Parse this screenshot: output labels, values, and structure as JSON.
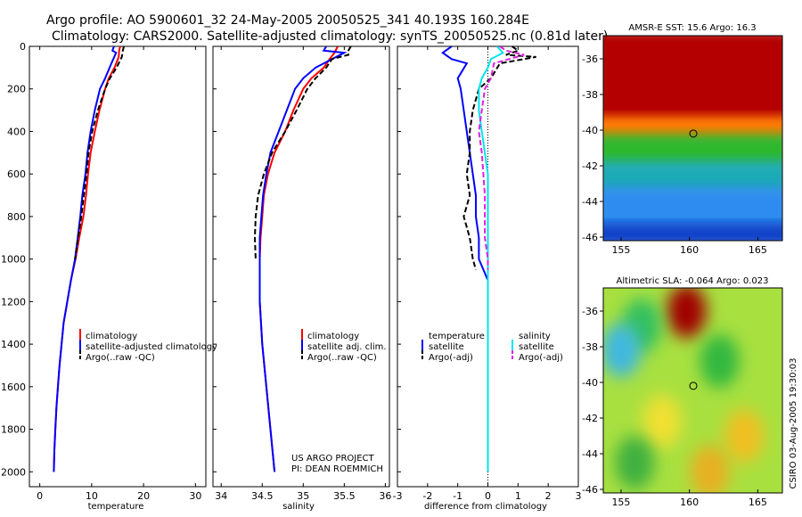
{
  "title_line1": "Argo profile: AO 5900601_32 24-May-2005 20050525_341 40.193S 160.284E",
  "title_line2": "Climatology: CARS2000. Satellite-adjusted climatology: synTS_20050525.nc (0.81d later)",
  "footer_project": "US ARGO PROJECT",
  "footer_pi": "PI: DEAN ROEMMICH",
  "side_credit": "CSIRO 03-Aug-2005 19:30:03",
  "colors": {
    "red": "#ff0000",
    "blue": "#0000ff",
    "black": "#000000",
    "cyan": "#00e5ee",
    "magenta": "#e020e0"
  },
  "chart_data": [
    {
      "type": "line",
      "title": "Temperature profile",
      "xlabel": "temperature",
      "ylabel": "",
      "xlim": [
        -2,
        32
      ],
      "ylim": [
        2070,
        0
      ],
      "xticks": [
        0,
        10,
        20,
        30
      ],
      "yticks": [
        0,
        200,
        400,
        600,
        800,
        1000,
        1200,
        1400,
        1600,
        1800,
        2000
      ],
      "legend": [
        "climatology",
        "satellite-adjusted climatology",
        "Argo(..raw -QC)"
      ],
      "series": [
        {
          "name": "climatology",
          "color": "red",
          "dash": false,
          "points": [
            [
              15.5,
              0
            ],
            [
              15.3,
              20
            ],
            [
              15.2,
              50
            ],
            [
              14.4,
              100
            ],
            [
              13.3,
              150
            ],
            [
              12.6,
              200
            ],
            [
              11.5,
              300
            ],
            [
              10.6,
              400
            ],
            [
              9.8,
              500
            ],
            [
              9.3,
              600
            ],
            [
              8.9,
              700
            ],
            [
              8.4,
              800
            ],
            [
              7.6,
              900
            ],
            [
              6.9,
              1000
            ],
            [
              6.0,
              1100
            ],
            [
              5.3,
              1200
            ],
            [
              4.6,
              1300
            ],
            [
              4.2,
              1400
            ],
            [
              3.8,
              1500
            ],
            [
              3.5,
              1600
            ],
            [
              3.2,
              1700
            ],
            [
              3.0,
              1800
            ],
            [
              2.8,
              1900
            ],
            [
              2.7,
              2000
            ]
          ]
        },
        {
          "name": "satellite-adjusted climatology",
          "color": "blue",
          "dash": false,
          "points": [
            [
              14.3,
              0
            ],
            [
              14.0,
              20
            ],
            [
              14.7,
              30
            ],
            [
              13.8,
              80
            ],
            [
              12.6,
              150
            ],
            [
              11.6,
              200
            ],
            [
              10.6,
              300
            ],
            [
              9.8,
              400
            ],
            [
              9.2,
              500
            ],
            [
              8.8,
              600
            ],
            [
              8.2,
              700
            ],
            [
              7.8,
              800
            ],
            [
              7.3,
              900
            ],
            [
              6.8,
              1000
            ],
            [
              6.0,
              1100
            ],
            [
              5.3,
              1200
            ],
            [
              4.6,
              1300
            ],
            [
              4.2,
              1400
            ],
            [
              3.8,
              1500
            ],
            [
              3.5,
              1600
            ],
            [
              3.2,
              1700
            ],
            [
              3.0,
              1800
            ],
            [
              2.8,
              1900
            ],
            [
              2.7,
              2000
            ]
          ]
        },
        {
          "name": "Argo(..raw -QC)",
          "color": "black",
          "dash": true,
          "points": [
            [
              16.2,
              0
            ],
            [
              16.0,
              20
            ],
            [
              15.8,
              50
            ],
            [
              14.8,
              100
            ],
            [
              13.5,
              150
            ],
            [
              12.6,
              200
            ],
            [
              11.2,
              300
            ],
            [
              10.1,
              400
            ],
            [
              9.4,
              500
            ],
            [
              9.0,
              600
            ],
            [
              8.5,
              700
            ],
            [
              8.0,
              800
            ],
            [
              7.4,
              900
            ],
            [
              6.8,
              1000
            ]
          ]
        }
      ]
    },
    {
      "type": "line",
      "title": "Salinity profile",
      "xlabel": "salinity",
      "ylabel": "",
      "xlim": [
        33.9,
        36.05
      ],
      "ylim": [
        2070,
        0
      ],
      "xticks": [
        34,
        34.5,
        35,
        35.5,
        36
      ],
      "legend": [
        "climatology",
        "satellite adj. clim.",
        "Argo(..raw -QC)"
      ],
      "series": [
        {
          "name": "climatology",
          "color": "red",
          "dash": false,
          "points": [
            [
              35.42,
              0
            ],
            [
              35.38,
              30
            ],
            [
              35.32,
              60
            ],
            [
              35.25,
              100
            ],
            [
              35.1,
              150
            ],
            [
              35.0,
              200
            ],
            [
              34.88,
              300
            ],
            [
              34.78,
              400
            ],
            [
              34.65,
              500
            ],
            [
              34.57,
              600
            ],
            [
              34.52,
              700
            ],
            [
              34.5,
              800
            ],
            [
              34.48,
              900
            ],
            [
              34.47,
              1000
            ],
            [
              34.47,
              1200
            ],
            [
              34.5,
              1400
            ],
            [
              34.55,
              1600
            ],
            [
              34.6,
              1800
            ],
            [
              34.65,
              2000
            ]
          ]
        },
        {
          "name": "satellite adj. clim.",
          "color": "blue",
          "dash": false,
          "points": [
            [
              35.28,
              0
            ],
            [
              35.25,
              20
            ],
            [
              35.5,
              30
            ],
            [
              35.15,
              100
            ],
            [
              35.0,
              150
            ],
            [
              34.9,
              200
            ],
            [
              34.8,
              300
            ],
            [
              34.7,
              400
            ],
            [
              34.6,
              500
            ],
            [
              34.55,
              600
            ],
            [
              34.51,
              700
            ],
            [
              34.49,
              800
            ],
            [
              34.47,
              900
            ],
            [
              34.47,
              1000
            ],
            [
              34.47,
              1200
            ],
            [
              34.5,
              1400
            ],
            [
              34.55,
              1600
            ],
            [
              34.6,
              1800
            ],
            [
              34.65,
              2000
            ]
          ]
        },
        {
          "name": "Argo(..raw -QC)",
          "color": "black",
          "dash": true,
          "points": [
            [
              35.58,
              0
            ],
            [
              35.55,
              20
            ],
            [
              35.55,
              40
            ],
            [
              35.35,
              60
            ],
            [
              35.28,
              100
            ],
            [
              35.15,
              150
            ],
            [
              35.05,
              200
            ],
            [
              34.92,
              300
            ],
            [
              34.78,
              400
            ],
            [
              34.62,
              500
            ],
            [
              34.52,
              600
            ],
            [
              34.45,
              700
            ],
            [
              34.42,
              800
            ],
            [
              34.41,
              900
            ],
            [
              34.42,
              1000
            ]
          ]
        }
      ]
    },
    {
      "type": "line",
      "title": "Difference from climatology",
      "xlabel": "difference from climatology",
      "ylabel": "",
      "xlim": [
        -3,
        3
      ],
      "ylim": [
        2070,
        0
      ],
      "xticks": [
        -3,
        -2,
        -1,
        0,
        1,
        2,
        3
      ],
      "legend_temperature_header": "temperature",
      "legend_salinity_header": "salinity",
      "legend": [
        "satellite",
        "Argo(-adj)",
        "satellite",
        "Argo(-adj)"
      ],
      "series": [
        {
          "name": "temperature satellite",
          "color": "blue",
          "dash": false,
          "points": [
            [
              -1.2,
              0
            ],
            [
              -1.5,
              30
            ],
            [
              -1.2,
              60
            ],
            [
              -0.7,
              80
            ],
            [
              -1.0,
              150
            ],
            [
              -0.9,
              200
            ],
            [
              -0.8,
              300
            ],
            [
              -0.7,
              400
            ],
            [
              -0.6,
              500
            ],
            [
              -0.5,
              600
            ],
            [
              -0.4,
              700
            ],
            [
              -0.4,
              800
            ],
            [
              -0.3,
              900
            ],
            [
              -0.3,
              1000
            ],
            [
              0.0,
              1100
            ],
            [
              0.0,
              1200
            ],
            [
              0,
              1400
            ],
            [
              0,
              2000
            ]
          ]
        },
        {
          "name": "temperature Argo(-adj)",
          "color": "black",
          "dash": true,
          "points": [
            [
              0.8,
              0
            ],
            [
              1.0,
              20
            ],
            [
              0.6,
              40
            ],
            [
              1.6,
              50
            ],
            [
              0.4,
              80
            ],
            [
              0.1,
              150
            ],
            [
              -0.3,
              200
            ],
            [
              -0.5,
              300
            ],
            [
              -0.6,
              400
            ],
            [
              -0.6,
              500
            ],
            [
              -0.7,
              600
            ],
            [
              -0.6,
              700
            ],
            [
              -0.8,
              800
            ],
            [
              -0.6,
              900
            ],
            [
              -0.5,
              1000
            ],
            [
              -0.4,
              1050
            ]
          ]
        },
        {
          "name": "salinity satellite",
          "color": "cyan",
          "dash": false,
          "points": [
            [
              0.3,
              0
            ],
            [
              0.5,
              30
            ],
            [
              0.1,
              60
            ],
            [
              0.0,
              100
            ],
            [
              -0.2,
              150
            ],
            [
              -0.3,
              200
            ],
            [
              -0.3,
              300
            ],
            [
              -0.2,
              400
            ],
            [
              -0.1,
              500
            ],
            [
              0.0,
              600
            ],
            [
              0.0,
              700
            ],
            [
              0.0,
              1000
            ],
            [
              0,
              2000
            ]
          ]
        },
        {
          "name": "salinity Argo(-adj)",
          "color": "magenta",
          "dash": true,
          "points": [
            [
              0.4,
              0
            ],
            [
              0.6,
              20
            ],
            [
              1.2,
              40
            ],
            [
              0.2,
              80
            ],
            [
              0.1,
              150
            ],
            [
              -0.1,
              200
            ],
            [
              -0.2,
              300
            ],
            [
              -0.3,
              400
            ],
            [
              -0.2,
              500
            ],
            [
              -0.15,
              600
            ],
            [
              -0.1,
              700
            ],
            [
              -0.1,
              900
            ],
            [
              0.0,
              1000
            ],
            [
              0.0,
              1050
            ]
          ]
        }
      ]
    },
    {
      "type": "heatmap",
      "title": "AMSR-E SST: 15.6 Argo: 16.3",
      "xlim": [
        153.7,
        166.8
      ],
      "ylim": [
        -46.2,
        -34.7
      ],
      "xticks": [
        155,
        160,
        165
      ],
      "yticks": [
        -36,
        -38,
        -40,
        -42,
        -44,
        -46
      ],
      "marker": {
        "lon": 160.284,
        "lat": -40.193
      },
      "value_bands": [
        {
          "from_lat": -34.7,
          "to_lat": -39.5,
          "color": "#b40000"
        },
        {
          "from_lat": -39.5,
          "to_lat": -40.5,
          "color": "#ff7a00"
        },
        {
          "from_lat": -40.5,
          "to_lat": -42.0,
          "color": "#2fb82f"
        },
        {
          "from_lat": -42.0,
          "to_lat": -43.5,
          "color": "#1faab5"
        },
        {
          "from_lat": -43.5,
          "to_lat": -45.5,
          "color": "#2d8cf0"
        },
        {
          "from_lat": -45.5,
          "to_lat": -46.2,
          "color": "#1040c8"
        }
      ]
    },
    {
      "type": "heatmap",
      "title": "Altimetric SLA: -0.064 Argo: 0.023",
      "xlim": [
        153.7,
        166.8
      ],
      "ylim": [
        -46.2,
        -34.7
      ],
      "xticks": [
        155,
        160,
        165
      ],
      "yticks": [
        -36,
        -38,
        -40,
        -42,
        -44,
        -46
      ],
      "marker": {
        "lon": 160.284,
        "lat": -40.193
      },
      "base_color": "#a8e040",
      "blobs": [
        {
          "lon": 159.8,
          "lat": -36.0,
          "color": "#a00000"
        },
        {
          "lon": 156.5,
          "lat": -36.8,
          "color": "#30c060"
        },
        {
          "lon": 155.0,
          "lat": -38.2,
          "color": "#40b8e0"
        },
        {
          "lon": 162.2,
          "lat": -38.8,
          "color": "#30b840"
        },
        {
          "lon": 158.0,
          "lat": -42.2,
          "color": "#f0e030"
        },
        {
          "lon": 164.0,
          "lat": -43.0,
          "color": "#f0c020"
        },
        {
          "lon": 156.0,
          "lat": -44.5,
          "color": "#40b040"
        },
        {
          "lon": 161.5,
          "lat": -45.0,
          "color": "#e8b020"
        }
      ]
    }
  ]
}
